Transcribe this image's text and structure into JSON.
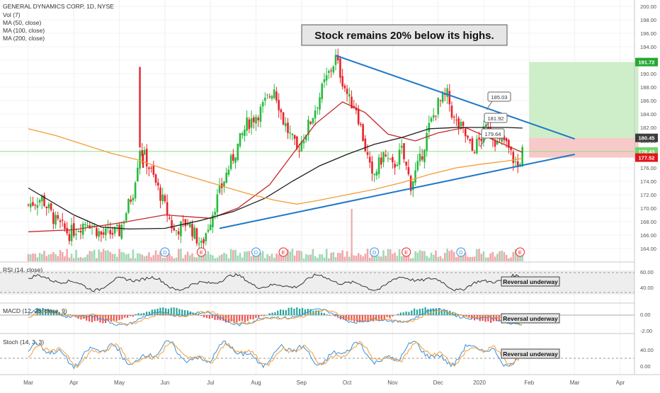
{
  "header": {
    "symbol_line": "GENERAL DYNAMICS CORP, 1D, NYSE",
    "indicators": [
      "Vol (7)",
      "MA (50, close)",
      "MA (100, close)",
      "MA (200, close)"
    ]
  },
  "annotation": {
    "headline": "Stock remains 20% below its highs."
  },
  "panes": {
    "rsi": {
      "label": "RSI (14, close)",
      "note": "Reversal underway",
      "ticks": [
        "60.00",
        "40.00"
      ]
    },
    "macd": {
      "label": "MACD (12, 26, close, 9)",
      "note": "Reversal underway",
      "ticks": [
        "0.00",
        "-2.00"
      ]
    },
    "stoch": {
      "label": "Stoch (14, 3, 3)",
      "note": "Reversal underway",
      "ticks": [
        "40.00",
        "0.00"
      ]
    }
  },
  "price_badges": [
    {
      "text": "191.72",
      "value": 191.72,
      "color": "#26a833"
    },
    {
      "text": "180.45",
      "value": 180.45,
      "color": "#3d3d3d"
    },
    {
      "text": "178.43",
      "value": 178.43,
      "color": "#77d36d"
    },
    {
      "text": "177.52",
      "value": 177.52,
      "color": "#e0161b"
    }
  ],
  "callouts": [
    {
      "text": "185.03",
      "value": 185.03
    },
    {
      "text": "181.92",
      "value": 181.92
    },
    {
      "text": "179.64",
      "value": 179.64
    }
  ],
  "events": {
    "d": {
      "label": "D",
      "months": [
        3.0,
        5.0,
        7.6,
        9.5
      ]
    },
    "e": {
      "label": "E",
      "months": [
        3.8,
        5.6,
        8.3,
        10.8
      ]
    }
  },
  "colors": {
    "up": "#26bb3c",
    "down": "#e8232b",
    "ma50": "#c62828",
    "ma100": "#1c1c1c",
    "ma200": "#f29d38",
    "trendline": "#1f77c8",
    "rsi": "#333333",
    "macd": "#3a8fd9",
    "signal": "#f29d38",
    "stoch_k": "#3a8fd9",
    "stoch_d": "#f29d38",
    "target_zone": "#cdeec8",
    "stop_zone": "#f7c9c9"
  },
  "chart_data": {
    "type": "candlestick",
    "x_axis_ticks": [
      "Mar",
      "Apr",
      "May",
      "Jun",
      "Jul",
      "Aug",
      "Sep",
      "Oct",
      "Nov",
      "Dec",
      "2020",
      "Feb",
      "Mar",
      "Apr"
    ],
    "y_axis": {
      "min": 162,
      "max": 200,
      "ticks": [
        164.0,
        166.0,
        168.0,
        170.0,
        172.0,
        174.0,
        176.0,
        178.0,
        180.0,
        182.0,
        184.0,
        186.0,
        188.0,
        190.0,
        192.0,
        194.0,
        196.0,
        198.0,
        200.0
      ]
    },
    "price_path": [
      {
        "m": 0.0,
        "p": 170.5
      },
      {
        "m": 0.3,
        "p": 171.5
      },
      {
        "m": 0.6,
        "p": 168.0
      },
      {
        "m": 0.9,
        "p": 166.2
      },
      {
        "m": 1.3,
        "p": 168.2
      },
      {
        "m": 1.6,
        "p": 166.0
      },
      {
        "m": 2.0,
        "p": 166.5
      },
      {
        "m": 2.3,
        "p": 172.5
      },
      {
        "m": 2.45,
        "p": 179.0
      },
      {
        "m": 2.6,
        "p": 177.0
      },
      {
        "m": 2.9,
        "p": 172.0
      },
      {
        "m": 3.2,
        "p": 166.5
      },
      {
        "m": 3.5,
        "p": 168.0
      },
      {
        "m": 3.8,
        "p": 164.3
      },
      {
        "m": 4.1,
        "p": 170.5
      },
      {
        "m": 4.4,
        "p": 176.0
      },
      {
        "m": 4.8,
        "p": 182.5
      },
      {
        "m": 5.1,
        "p": 184.5
      },
      {
        "m": 5.4,
        "p": 188.0
      },
      {
        "m": 5.6,
        "p": 183.0
      },
      {
        "m": 5.9,
        "p": 178.5
      },
      {
        "m": 6.2,
        "p": 183.0
      },
      {
        "m": 6.5,
        "p": 188.5
      },
      {
        "m": 6.75,
        "p": 192.3
      },
      {
        "m": 6.9,
        "p": 189.0
      },
      {
        "m": 7.05,
        "p": 186.0
      },
      {
        "m": 7.2,
        "p": 185.0
      },
      {
        "m": 7.4,
        "p": 179.0
      },
      {
        "m": 7.55,
        "p": 174.3
      },
      {
        "m": 7.8,
        "p": 178.0
      },
      {
        "m": 8.0,
        "p": 176.0
      },
      {
        "m": 8.2,
        "p": 178.5
      },
      {
        "m": 8.4,
        "p": 173.5
      },
      {
        "m": 8.6,
        "p": 177.0
      },
      {
        "m": 8.8,
        "p": 182.0
      },
      {
        "m": 9.0,
        "p": 185.5
      },
      {
        "m": 9.2,
        "p": 186.8
      },
      {
        "m": 9.35,
        "p": 183.0
      },
      {
        "m": 9.55,
        "p": 181.5
      },
      {
        "m": 9.75,
        "p": 178.5
      },
      {
        "m": 9.95,
        "p": 180.5
      },
      {
        "m": 10.1,
        "p": 182.5
      },
      {
        "m": 10.3,
        "p": 179.5
      },
      {
        "m": 10.45,
        "p": 180.0
      },
      {
        "m": 10.6,
        "p": 178.0
      },
      {
        "m": 10.75,
        "p": 176.0
      },
      {
        "m": 10.85,
        "p": 178.4
      }
    ],
    "spikes": [
      {
        "m": 2.45,
        "p": 191.0,
        "type": "up-wick"
      },
      {
        "m": 2.52,
        "p": 176.0,
        "type": "wick"
      }
    ],
    "moving_averages": {
      "ma50": [
        {
          "m": 0.0,
          "p": 166.5
        },
        {
          "m": 1.0,
          "p": 166.8
        },
        {
          "m": 2.0,
          "p": 167.8
        },
        {
          "m": 3.0,
          "p": 169.0
        },
        {
          "m": 4.0,
          "p": 168.5
        },
        {
          "m": 4.6,
          "p": 170.0
        },
        {
          "m": 5.3,
          "p": 173.5
        },
        {
          "m": 5.8,
          "p": 178.0
        },
        {
          "m": 6.3,
          "p": 182.5
        },
        {
          "m": 6.9,
          "p": 185.8
        },
        {
          "m": 7.4,
          "p": 184.2
        },
        {
          "m": 7.9,
          "p": 181.0
        },
        {
          "m": 8.5,
          "p": 180.0
        },
        {
          "m": 9.0,
          "p": 181.2
        },
        {
          "m": 9.6,
          "p": 182.0
        },
        {
          "m": 10.2,
          "p": 180.2
        },
        {
          "m": 10.85,
          "p": 178.3
        }
      ],
      "ma100": [
        {
          "m": 0.0,
          "p": 173.0
        },
        {
          "m": 0.5,
          "p": 171.0
        },
        {
          "m": 1.0,
          "p": 169.0
        },
        {
          "m": 1.6,
          "p": 167.2
        },
        {
          "m": 2.2,
          "p": 166.9
        },
        {
          "m": 3.0,
          "p": 167.0
        },
        {
          "m": 3.8,
          "p": 168.2
        },
        {
          "m": 4.5,
          "p": 169.5
        },
        {
          "m": 5.2,
          "p": 171.5
        },
        {
          "m": 5.8,
          "p": 174.0
        },
        {
          "m": 6.4,
          "p": 176.3
        },
        {
          "m": 7.0,
          "p": 178.0
        },
        {
          "m": 7.6,
          "p": 179.5
        },
        {
          "m": 8.2,
          "p": 180.5
        },
        {
          "m": 8.8,
          "p": 181.8
        },
        {
          "m": 9.4,
          "p": 182.0
        },
        {
          "m": 10.0,
          "p": 182.0
        },
        {
          "m": 10.5,
          "p": 182.0
        },
        {
          "m": 10.85,
          "p": 181.9
        }
      ],
      "ma200": [
        {
          "m": 0.0,
          "p": 181.8
        },
        {
          "m": 0.6,
          "p": 180.8
        },
        {
          "m": 1.2,
          "p": 179.5
        },
        {
          "m": 1.8,
          "p": 178.2
        },
        {
          "m": 2.4,
          "p": 177.2
        },
        {
          "m": 3.0,
          "p": 175.8
        },
        {
          "m": 3.6,
          "p": 174.6
        },
        {
          "m": 4.2,
          "p": 173.4
        },
        {
          "m": 4.8,
          "p": 172.2
        },
        {
          "m": 5.4,
          "p": 171.2
        },
        {
          "m": 5.9,
          "p": 170.6
        },
        {
          "m": 6.4,
          "p": 171.2
        },
        {
          "m": 7.0,
          "p": 172.0
        },
        {
          "m": 7.6,
          "p": 172.8
        },
        {
          "m": 8.2,
          "p": 173.8
        },
        {
          "m": 8.8,
          "p": 175.0
        },
        {
          "m": 9.4,
          "p": 176.0
        },
        {
          "m": 10.0,
          "p": 176.6
        },
        {
          "m": 10.5,
          "p": 177.0
        },
        {
          "m": 10.85,
          "p": 177.4
        }
      ]
    },
    "trendlines": [
      {
        "name": "upper",
        "from": {
          "m": 6.75,
          "p": 192.7
        },
        "to": {
          "m": 12.0,
          "p": 180.3
        }
      },
      {
        "name": "lower",
        "from": {
          "m": 4.2,
          "p": 167.0
        },
        "to": {
          "m": 12.0,
          "p": 178.0
        }
      }
    ],
    "target_zone": {
      "m_from": 11.0,
      "m_to": 13.4,
      "p_from": 180.45,
      "p_to": 191.72
    },
    "stop_zone": {
      "m_from": 11.0,
      "m_to": 13.4,
      "p_from": 177.52,
      "p_to": 180.45
    },
    "horizontal_line": {
      "p": 178.43
    }
  }
}
